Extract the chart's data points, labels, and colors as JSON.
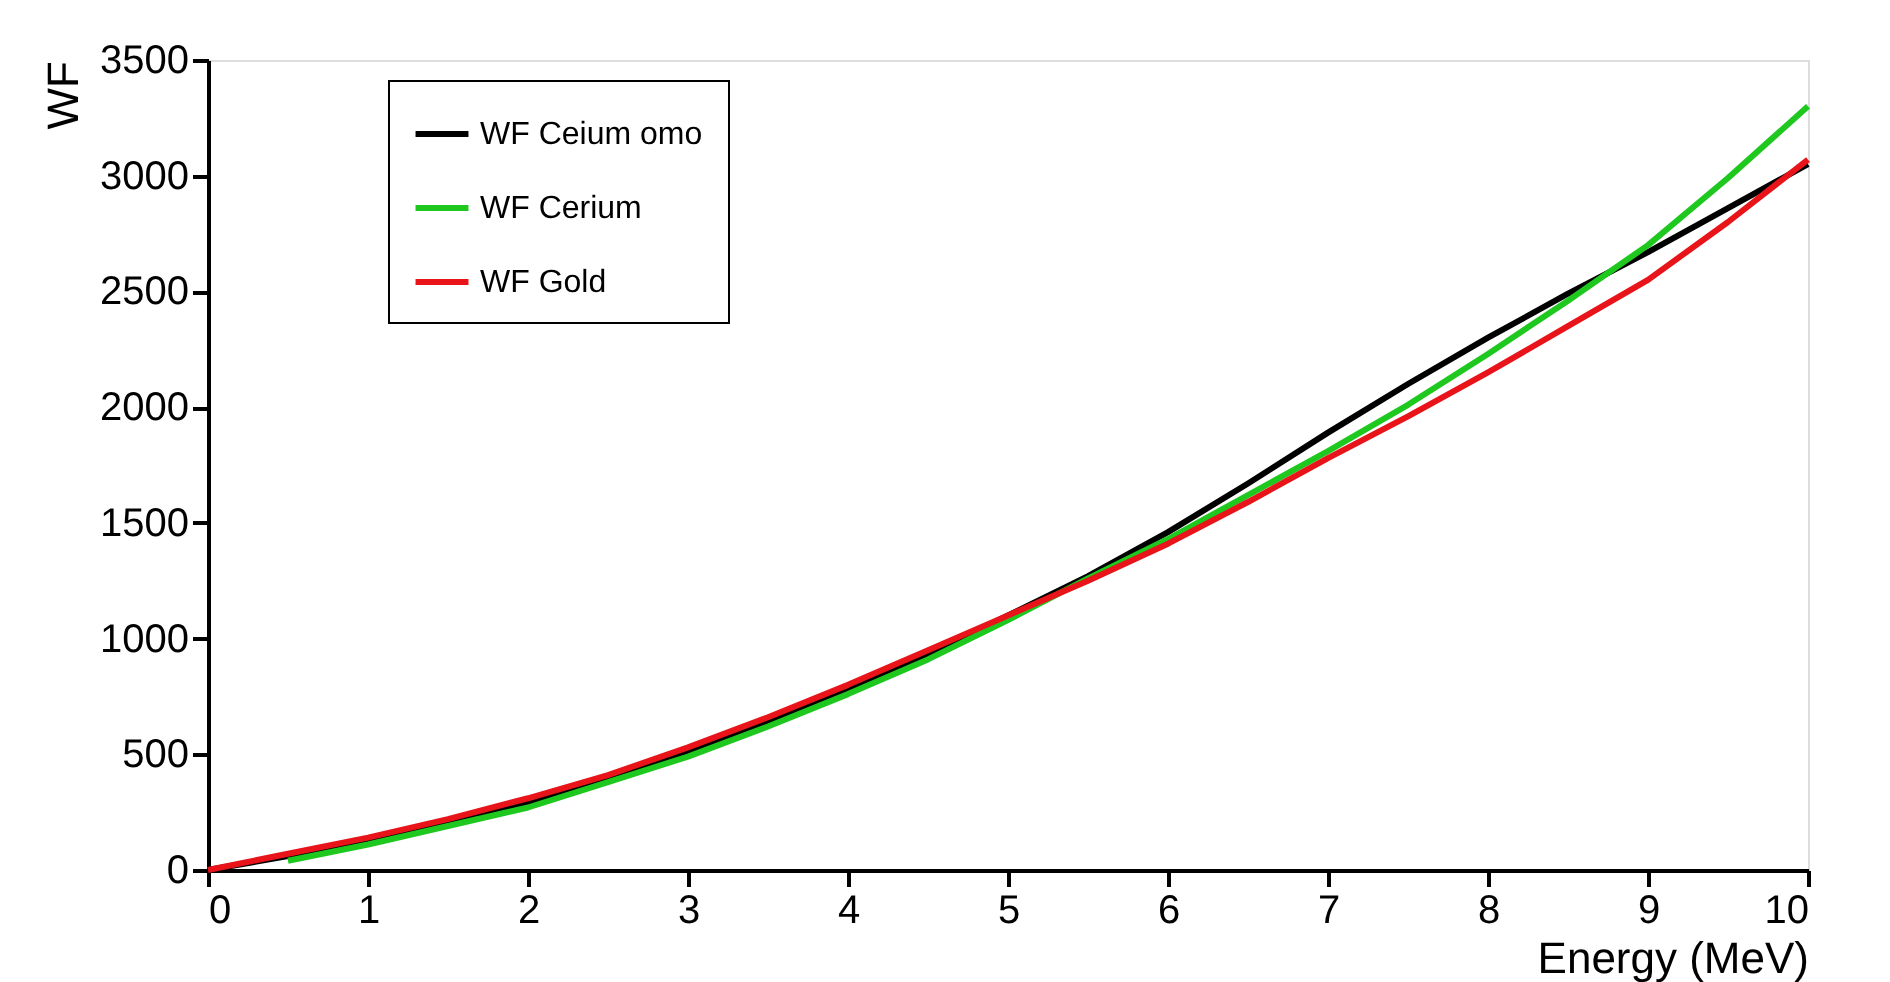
{
  "chart_data": {
    "type": "line",
    "xlabel": "Energy (MeV)",
    "ylabel": "WF",
    "x": [
      0,
      0.5,
      1,
      1.5,
      2,
      2.5,
      3,
      3.5,
      4,
      4.5,
      5,
      5.5,
      6,
      6.5,
      7,
      7.5,
      8,
      8.5,
      9,
      9.5,
      10
    ],
    "series": [
      {
        "name": "WF Ceium omo",
        "color": "#000000",
        "values": [
          0,
          60,
          130,
          200,
          290,
          390,
          510,
          640,
          780,
          930,
          1100,
          1270,
          1460,
          1670,
          1890,
          2100,
          2300,
          2490,
          2670,
          2860,
          3050
        ]
      },
      {
        "name": "WF Cerium",
        "color": "#1ec81e",
        "values": [
          null,
          40,
          110,
          190,
          270,
          380,
          490,
          620,
          760,
          910,
          1080,
          1260,
          1430,
          1620,
          1810,
          2010,
          2230,
          2460,
          2700,
          2990,
          3300
        ]
      },
      {
        "name": "WF Gold",
        "color": "#e8141a",
        "values": [
          0,
          70,
          140,
          220,
          310,
          410,
          530,
          660,
          800,
          950,
          1100,
          1250,
          1410,
          1590,
          1780,
          1960,
          2150,
          2350,
          2550,
          2800,
          3070
        ]
      }
    ],
    "xlim": [
      0,
      10
    ],
    "xticks": [
      0,
      1,
      2,
      3,
      4,
      5,
      6,
      7,
      8,
      9,
      10
    ],
    "ylim": [
      0,
      3500
    ],
    "yticks": [
      0,
      500,
      1000,
      1500,
      2000,
      2500,
      3000,
      3500
    ],
    "grid": false,
    "legend": "top left",
    "line_style": "solid",
    "marker": "none"
  }
}
